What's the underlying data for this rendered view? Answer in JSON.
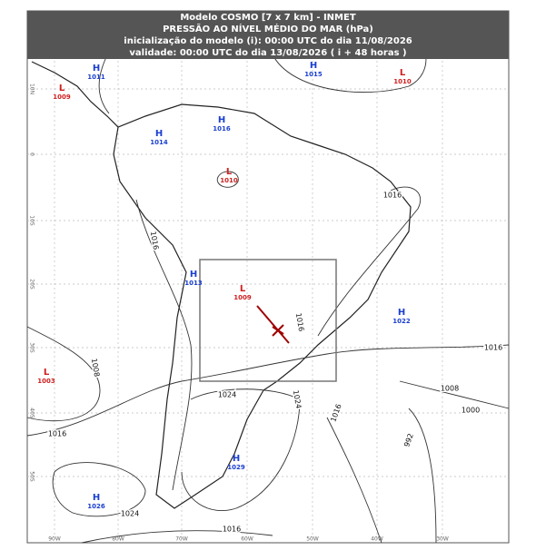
{
  "header": {
    "lines": [
      "Modelo COSMO [7 x 7 km] - INMET",
      "PRESSÃO AO NÍVEL MÉDIO DO MAR (hPa)",
      "inicialização do modelo (i): 00:00 UTC do dia 11/08/2026",
      "validade: 00:00 UTC do dia 13/08/2026 ( i + 48 horas )"
    ]
  },
  "centers": [
    {
      "symbol": "H",
      "value": "1011"
    },
    {
      "symbol": "L",
      "value": "1009"
    },
    {
      "symbol": "H",
      "value": "1015"
    },
    {
      "symbol": "L",
      "value": "1010"
    },
    {
      "symbol": "H",
      "value": "1014"
    },
    {
      "symbol": "H",
      "value": "1016"
    },
    {
      "symbol": "L",
      "value": "1010"
    },
    {
      "symbol": "H",
      "value": "1013"
    },
    {
      "symbol": "L",
      "value": "1009"
    },
    {
      "symbol": "H",
      "value": "1022"
    },
    {
      "symbol": "L",
      "value": "1003"
    },
    {
      "symbol": "H",
      "value": "1029"
    },
    {
      "symbol": "H",
      "value": "1026"
    }
  ],
  "isobar_labels": [
    "1016",
    "1016",
    "1016",
    "1008",
    "1024",
    "1024",
    "1016",
    "1016",
    "1008",
    "1000",
    "992",
    "1016",
    "1024",
    "1016"
  ],
  "lon_labels": [
    "90W",
    "80W",
    "70W",
    "60W",
    "50W",
    "40W",
    "30W"
  ],
  "lat_labels": [
    "10N",
    "0",
    "10S",
    "20S",
    "30S",
    "40S",
    "50S"
  ]
}
